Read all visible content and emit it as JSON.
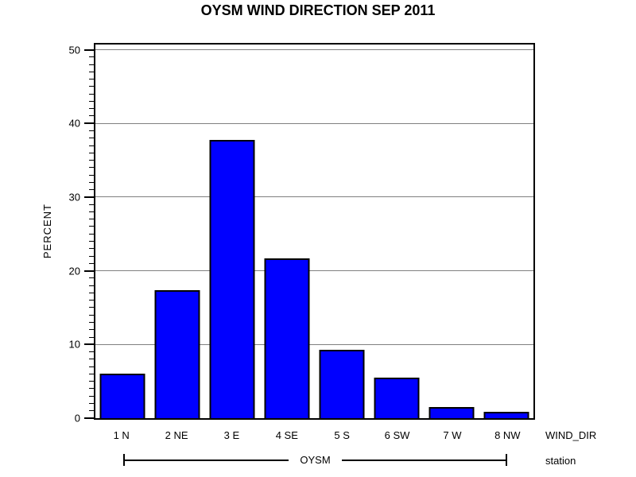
{
  "page": {
    "background": "#ffffff"
  },
  "chart_data": {
    "type": "bar",
    "title": "OYSM WIND DIRECTION SEP 2011",
    "categories": [
      "1 N",
      "2 NE",
      "3 E",
      "4 SE",
      "5 S",
      "6 SW",
      "7 W",
      "8 NW"
    ],
    "values": [
      6.0,
      17.4,
      37.8,
      21.7,
      9.3,
      5.5,
      1.5,
      0.9
    ],
    "xlabel": "WIND_DIR",
    "ylabel": "PERCENT",
    "group_label": "OYSM",
    "group_axis_label": "station",
    "ylim": [
      0,
      50.7
    ],
    "yticks": [
      0,
      10,
      20,
      30,
      40,
      50
    ],
    "minor_tick_interval": 1,
    "grid": true,
    "legend": "none",
    "bar_color": "#0000ff",
    "bar_border_color": "#000000",
    "grid_color": "#808080",
    "axis_color": "#000000"
  }
}
